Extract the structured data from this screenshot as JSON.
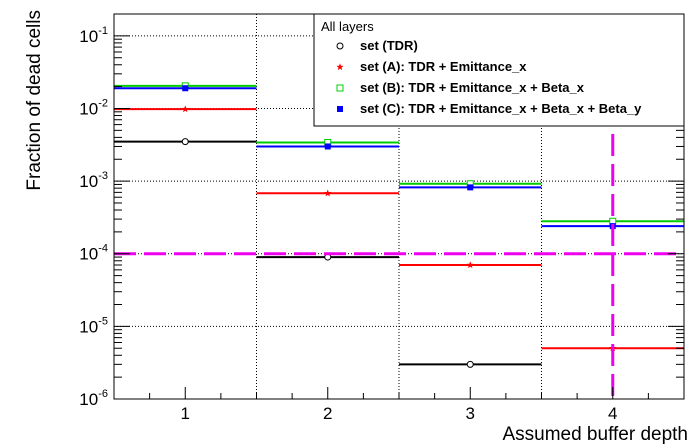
{
  "chart_data": {
    "type": "scatter",
    "xlabel": "Assumed buffer depth",
    "ylabel": "Fraction of dead cells",
    "x": [
      1,
      2,
      3,
      4
    ],
    "x_tick_labels": [
      "1",
      "2",
      "3",
      "4"
    ],
    "xlim": [
      0.5,
      4.5
    ],
    "ylim": [
      1e-06,
      0.2
    ],
    "y_scale": "log",
    "y_tick_labels": [
      {
        "base": "10",
        "exp": "-6"
      },
      {
        "base": "10",
        "exp": "-5"
      },
      {
        "base": "10",
        "exp": "-4"
      },
      {
        "base": "10",
        "exp": "-3"
      },
      {
        "base": "10",
        "exp": "-2"
      },
      {
        "base": "10",
        "exp": "-1"
      }
    ],
    "grid": true,
    "legend": {
      "header": "All layers",
      "placement": "top-right"
    },
    "series": [
      {
        "name": "set (TDR)",
        "color": "#000000",
        "marker": "open-circle",
        "values": [
          0.0035,
          9e-05,
          3e-06,
          null
        ]
      },
      {
        "name": "set (A): TDR + Emittance_x",
        "color": "#ff0000",
        "marker": "filled-star",
        "values": [
          0.0098,
          0.00068,
          7e-05,
          5e-06
        ]
      },
      {
        "name": "set (B): TDR + Emittance_x + Beta_x",
        "color": "#00cc00",
        "marker": "open-square",
        "values": [
          0.0205,
          0.0034,
          0.00092,
          0.00028
        ]
      },
      {
        "name": "set (C): TDR + Emittance_x + Beta_x + Beta_y",
        "color": "#0000ff",
        "marker": "filled-square",
        "values": [
          0.019,
          0.003,
          0.00082,
          0.00024
        ]
      }
    ],
    "reference_lines": [
      {
        "orientation": "horizontal",
        "value": 0.0001,
        "color": "#ee00ee",
        "style": "dashed"
      },
      {
        "orientation": "vertical",
        "value": 4,
        "color": "#ee00ee",
        "style": "dashed"
      }
    ]
  }
}
